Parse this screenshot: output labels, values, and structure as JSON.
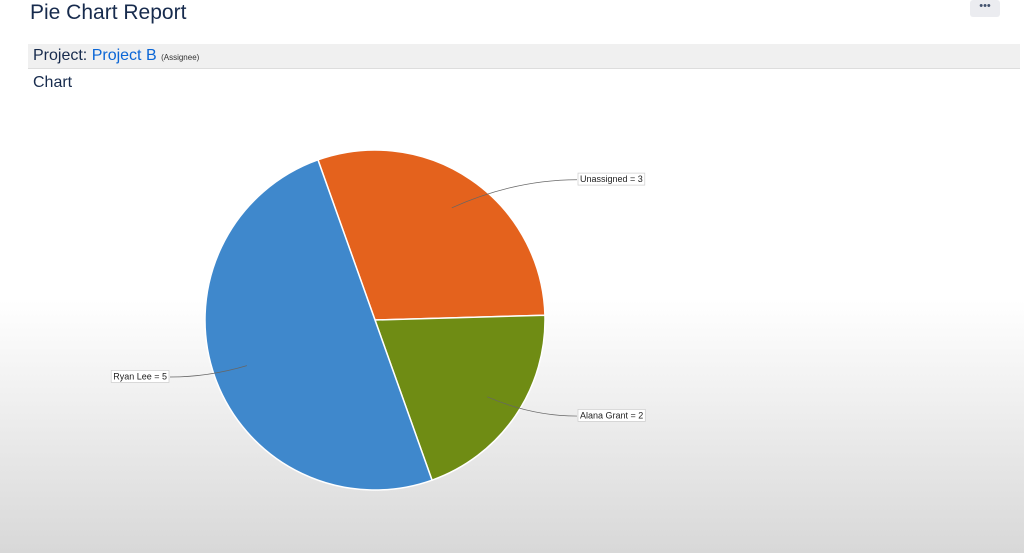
{
  "header": {
    "title": "Pie Chart Report",
    "menu": "•••"
  },
  "report": {
    "project_label": "Project:",
    "project": "Project B",
    "group_by": "(Assignee)",
    "section": "Chart"
  },
  "chart_data": {
    "type": "pie",
    "values": [
      3,
      2,
      5
    ],
    "value_labels": [
      "Unassigned = 3",
      "Alana Grant = 2",
      "Ryan Lee = 5"
    ],
    "colors": [
      "#e4621d",
      "#6f8c14",
      "#3f88cc"
    ]
  }
}
